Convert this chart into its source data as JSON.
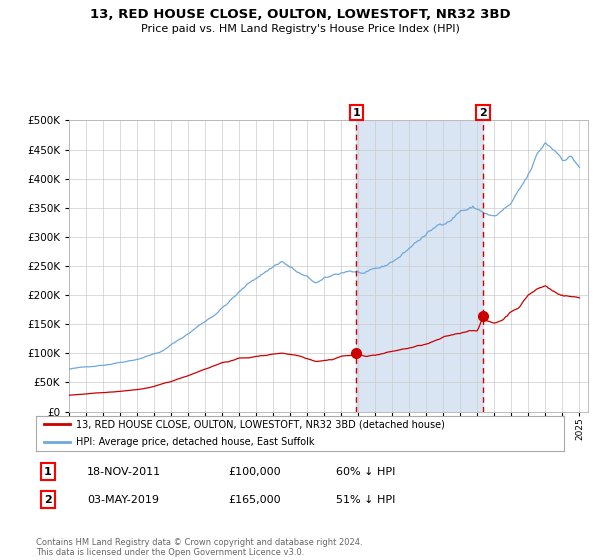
{
  "title": "13, RED HOUSE CLOSE, OULTON, LOWESTOFT, NR32 3BD",
  "subtitle": "Price paid vs. HM Land Registry's House Price Index (HPI)",
  "legend_line1": "13, RED HOUSE CLOSE, OULTON, LOWESTOFT, NR32 3BD (detached house)",
  "legend_line2": "HPI: Average price, detached house, East Suffolk",
  "sale1_date": "18-NOV-2011",
  "sale1_price": 100000,
  "sale1_pct": "60% ↓ HPI",
  "sale2_date": "03-MAY-2019",
  "sale2_price": 165000,
  "sale2_pct": "51% ↓ HPI",
  "footnote": "Contains HM Land Registry data © Crown copyright and database right 2024.\nThis data is licensed under the Open Government Licence v3.0.",
  "hpi_color": "#6fa8dc",
  "price_color": "#cc0000",
  "background_color": "#ffffff",
  "plot_bg_color": "#ffffff",
  "shade_color": "#d9e5f3",
  "grid_color": "#cccccc",
  "vline_color": "#cc0000",
  "ylim": [
    0,
    500000
  ],
  "yticks": [
    0,
    50000,
    100000,
    150000,
    200000,
    250000,
    300000,
    350000,
    400000,
    450000,
    500000
  ],
  "xstart": 1995.0,
  "xend": 2025.5,
  "sale1_x": 2011.88,
  "sale2_x": 2019.33,
  "marker_size": 7,
  "hpi_waypoints": [
    [
      1995.0,
      73000
    ],
    [
      1996.0,
      76000
    ],
    [
      1997.5,
      83000
    ],
    [
      1999.0,
      93000
    ],
    [
      2000.5,
      108000
    ],
    [
      2002.0,
      138000
    ],
    [
      2003.5,
      172000
    ],
    [
      2005.0,
      213000
    ],
    [
      2006.0,
      238000
    ],
    [
      2007.5,
      270000
    ],
    [
      2008.5,
      248000
    ],
    [
      2009.5,
      228000
    ],
    [
      2010.5,
      238000
    ],
    [
      2011.5,
      248000
    ],
    [
      2012.5,
      242000
    ],
    [
      2013.5,
      248000
    ],
    [
      2014.5,
      268000
    ],
    [
      2015.5,
      295000
    ],
    [
      2016.5,
      315000
    ],
    [
      2017.5,
      335000
    ],
    [
      2018.0,
      350000
    ],
    [
      2018.75,
      355000
    ],
    [
      2019.5,
      345000
    ],
    [
      2020.0,
      338000
    ],
    [
      2021.0,
      358000
    ],
    [
      2021.5,
      378000
    ],
    [
      2022.0,
      400000
    ],
    [
      2022.5,
      432000
    ],
    [
      2023.0,
      452000
    ],
    [
      2023.5,
      442000
    ],
    [
      2024.0,
      430000
    ],
    [
      2024.5,
      435000
    ],
    [
      2025.0,
      418000
    ]
  ],
  "price_waypoints": [
    [
      1995.0,
      28000
    ],
    [
      1996.0,
      30000
    ],
    [
      1997.0,
      32000
    ],
    [
      1998.0,
      34000
    ],
    [
      1999.0,
      37000
    ],
    [
      2000.0,
      42000
    ],
    [
      2001.0,
      50000
    ],
    [
      2002.0,
      60000
    ],
    [
      2003.0,
      72000
    ],
    [
      2004.0,
      83000
    ],
    [
      2005.0,
      90000
    ],
    [
      2006.5,
      95000
    ],
    [
      2007.5,
      100000
    ],
    [
      2008.5,
      96000
    ],
    [
      2009.5,
      88000
    ],
    [
      2010.5,
      92000
    ],
    [
      2011.0,
      98000
    ],
    [
      2011.88,
      100000
    ],
    [
      2012.5,
      98000
    ],
    [
      2013.0,
      100000
    ],
    [
      2014.0,
      106000
    ],
    [
      2015.0,
      112000
    ],
    [
      2016.0,
      118000
    ],
    [
      2017.0,
      128000
    ],
    [
      2018.0,
      135000
    ],
    [
      2018.5,
      140000
    ],
    [
      2019.0,
      142000
    ],
    [
      2019.33,
      165000
    ],
    [
      2019.5,
      158000
    ],
    [
      2020.0,
      153000
    ],
    [
      2020.5,
      160000
    ],
    [
      2021.0,
      175000
    ],
    [
      2021.5,
      185000
    ],
    [
      2022.0,
      205000
    ],
    [
      2022.5,
      215000
    ],
    [
      2023.0,
      220000
    ],
    [
      2023.5,
      210000
    ],
    [
      2024.0,
      205000
    ],
    [
      2024.5,
      203000
    ],
    [
      2025.0,
      200000
    ]
  ]
}
